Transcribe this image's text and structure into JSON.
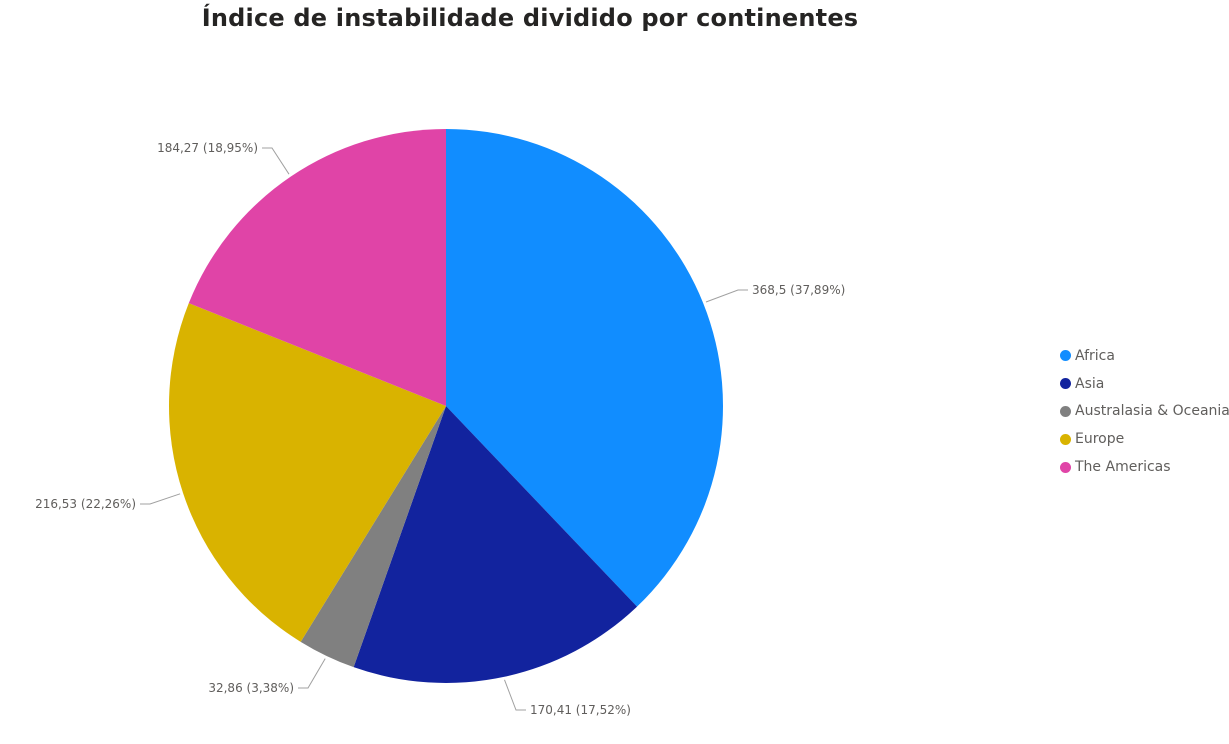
{
  "chart_data": {
    "type": "pie",
    "title": "Índice de instabilidade dividido por continentes",
    "slices": [
      {
        "label": "Africa",
        "value": 368.5,
        "percent": 37.89,
        "data_label": "368,5 (37,89%)",
        "color": "#118dff"
      },
      {
        "label": "Asia",
        "value": 170.41,
        "percent": 17.52,
        "data_label": "170,41 (17,52%)",
        "color": "#12239e"
      },
      {
        "label": "Australasia & Oceania",
        "value": 32.86,
        "percent": 3.38,
        "data_label": "32,86 (3,38%)",
        "color": "#808080"
      },
      {
        "label": "Europe",
        "value": 216.53,
        "percent": 22.26,
        "data_label": "216,53 (22,26%)",
        "color": "#d9b300"
      },
      {
        "label": "The Americas",
        "value": 184.27,
        "percent": 18.95,
        "data_label": "184,27 (18,95%)",
        "color": "#e044a7"
      }
    ],
    "legend_position": "right",
    "start_angle": "top, clockwise"
  }
}
